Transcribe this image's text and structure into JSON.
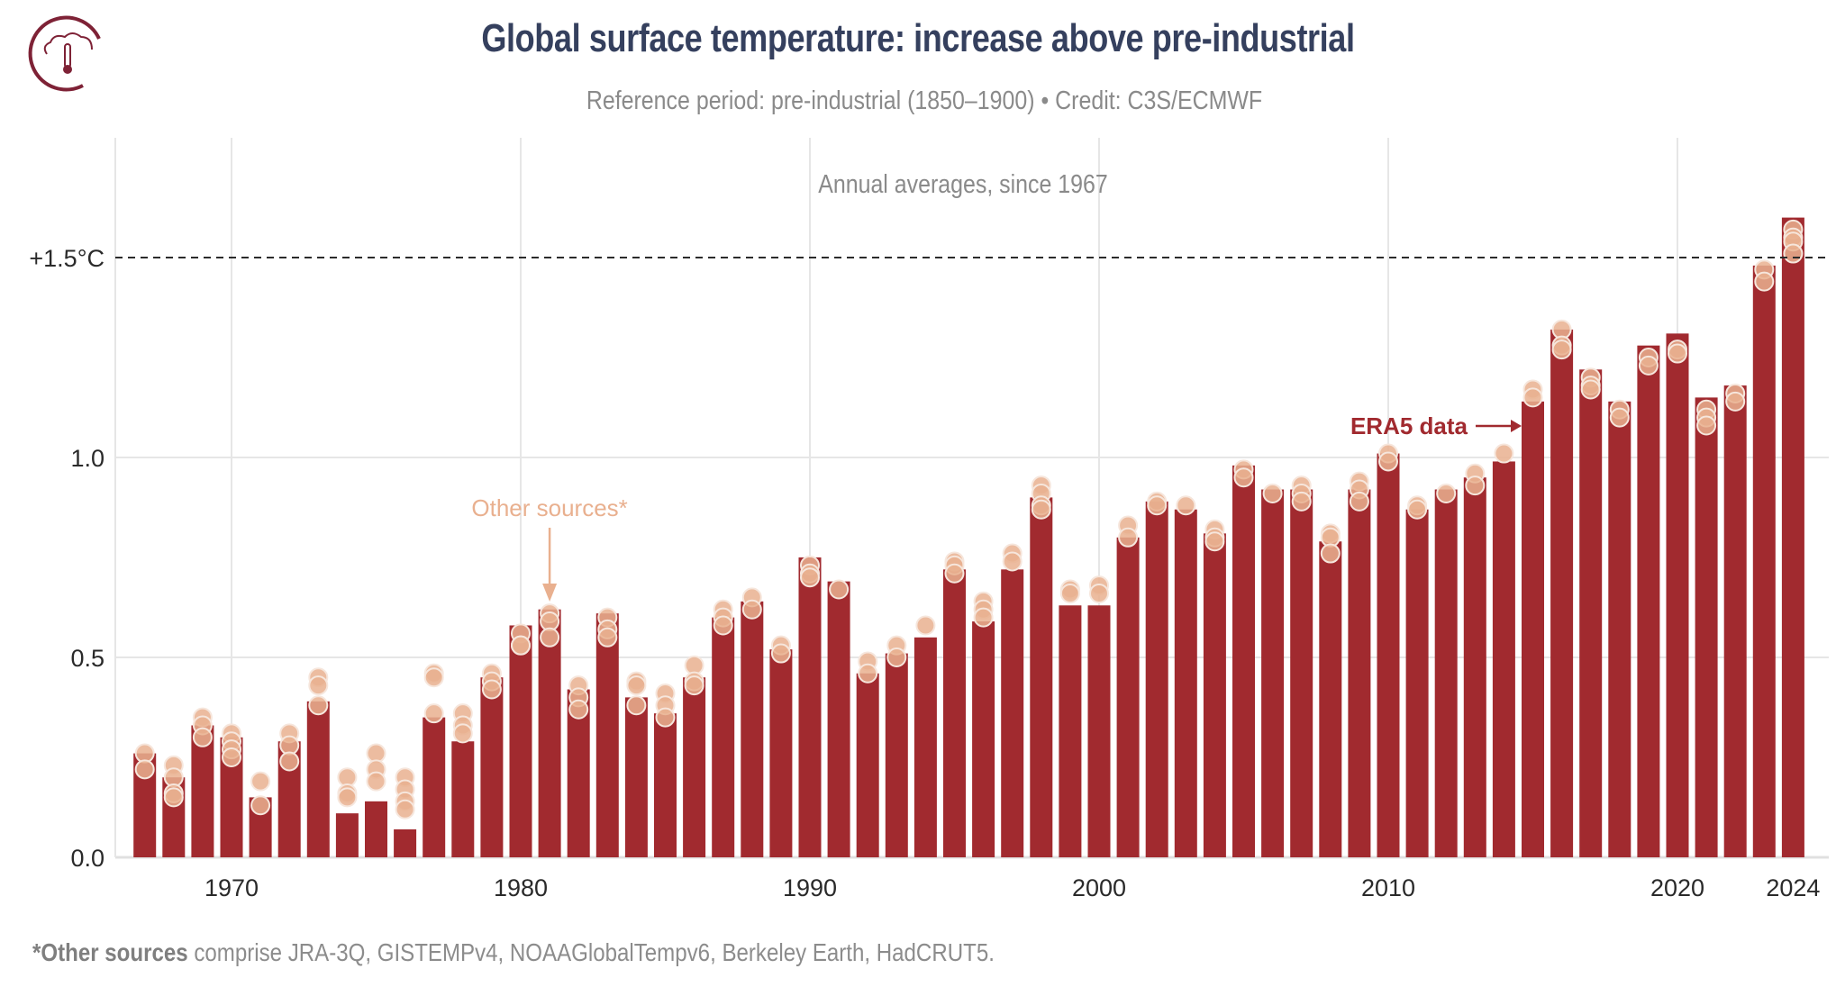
{
  "header": {
    "title": "Global surface temperature: increase above pre-industrial",
    "subtitle": "Reference period: pre-industrial (1850–1900) • Credit: C3S/ECMWF",
    "logo_icon": "cloud-thermometer-icon"
  },
  "footnote": {
    "bold": "*Other sources",
    "rest": " comprise JRA-3Q, GISTEMPv4, NOAAGlobalTempv6, Berkeley Earth, HadCRUT5."
  },
  "colors": {
    "bar": "#a12a2f",
    "dots": "#e9b08f",
    "title": "#35405e",
    "grid": "#e6e6e6"
  },
  "chart_data": {
    "type": "bar",
    "title": "Annual averages, since 1967",
    "xlabel": "",
    "ylabel": "",
    "ylim": [
      0,
      1.75
    ],
    "xlim": [
      1967,
      2024
    ],
    "grid": true,
    "y_ticks": [
      {
        "value": 0.0,
        "label": "0.0"
      },
      {
        "value": 0.5,
        "label": "0.5"
      },
      {
        "value": 1.0,
        "label": "1.0"
      },
      {
        "value": 1.5,
        "label": "+1.5°C"
      }
    ],
    "x_ticks": [
      {
        "value": 1970,
        "label": "1970"
      },
      {
        "value": 1980,
        "label": "1980"
      },
      {
        "value": 1990,
        "label": "1990"
      },
      {
        "value": 2000,
        "label": "2000"
      },
      {
        "value": 2010,
        "label": "2010"
      },
      {
        "value": 2020,
        "label": "2020"
      },
      {
        "value": 2024,
        "label": "2024"
      }
    ],
    "reference_line": {
      "value": 1.5,
      "style": "dashed"
    },
    "annotations": [
      {
        "text": "Other sources*",
        "target_year": 1981,
        "series": "Other sources"
      },
      {
        "text": "ERA5 data",
        "target_year": 2015,
        "series": "ERA5"
      }
    ],
    "categories": [
      1967,
      1968,
      1969,
      1970,
      1971,
      1972,
      1973,
      1974,
      1975,
      1976,
      1977,
      1978,
      1979,
      1980,
      1981,
      1982,
      1983,
      1984,
      1985,
      1986,
      1987,
      1988,
      1989,
      1990,
      1991,
      1992,
      1993,
      1994,
      1995,
      1996,
      1997,
      1998,
      1999,
      2000,
      2001,
      2002,
      2003,
      2004,
      2005,
      2006,
      2007,
      2008,
      2009,
      2010,
      2011,
      2012,
      2013,
      2014,
      2015,
      2016,
      2017,
      2018,
      2019,
      2020,
      2021,
      2022,
      2023,
      2024
    ],
    "series": [
      {
        "name": "ERA5",
        "kind": "bar",
        "values": [
          0.26,
          0.2,
          0.33,
          0.3,
          0.15,
          0.29,
          0.39,
          0.11,
          0.14,
          0.07,
          0.35,
          0.29,
          0.45,
          0.58,
          0.62,
          0.42,
          0.61,
          0.4,
          0.36,
          0.45,
          0.6,
          0.64,
          0.52,
          0.75,
          0.69,
          0.46,
          0.51,
          0.55,
          0.72,
          0.59,
          0.72,
          0.9,
          0.63,
          0.63,
          0.8,
          0.89,
          0.87,
          0.81,
          0.98,
          0.92,
          0.92,
          0.79,
          0.92,
          1.01,
          0.87,
          0.92,
          0.95,
          0.99,
          1.14,
          1.32,
          1.22,
          1.14,
          1.28,
          1.31,
          1.15,
          1.18,
          1.48,
          1.6
        ]
      },
      {
        "name": "Other sources",
        "kind": "dots",
        "values": [
          [
            0.26,
            0.22
          ],
          [
            0.23,
            0.2,
            0.16,
            0.15
          ],
          [
            0.35,
            0.33,
            0.3
          ],
          [
            0.31,
            0.29,
            0.27,
            0.25
          ],
          [
            0.19,
            0.13
          ],
          [
            0.31,
            0.28,
            0.24
          ],
          [
            0.45,
            0.43,
            0.38
          ],
          [
            0.2,
            0.16,
            0.15
          ],
          [
            0.26,
            0.22,
            0.19
          ],
          [
            0.2,
            0.17,
            0.14,
            0.12
          ],
          [
            0.46,
            0.45,
            0.36
          ],
          [
            0.36,
            0.33,
            0.31
          ],
          [
            0.46,
            0.44,
            0.42
          ],
          [
            0.56,
            0.53,
            0.53
          ],
          [
            0.61,
            0.59,
            0.55
          ],
          [
            0.43,
            0.4,
            0.37
          ],
          [
            0.6,
            0.57,
            0.55
          ],
          [
            0.44,
            0.43,
            0.38
          ],
          [
            0.41,
            0.38,
            0.35
          ],
          [
            0.48,
            0.44,
            0.43
          ],
          [
            0.62,
            0.6,
            0.58
          ],
          [
            0.65,
            0.62
          ],
          [
            0.53,
            0.51
          ],
          [
            0.73,
            0.71,
            0.7
          ],
          [
            0.67
          ],
          [
            0.49,
            0.46
          ],
          [
            0.53,
            0.5
          ],
          [
            0.58
          ],
          [
            0.74,
            0.73,
            0.71
          ],
          [
            0.64,
            0.62,
            0.6
          ],
          [
            0.76,
            0.74
          ],
          [
            0.93,
            0.91,
            0.88,
            0.87
          ],
          [
            0.67,
            0.66
          ],
          [
            0.68,
            0.66
          ],
          [
            0.83,
            0.8
          ],
          [
            0.89,
            0.88
          ],
          [
            0.88
          ],
          [
            0.82,
            0.8,
            0.79
          ],
          [
            0.97,
            0.95
          ],
          [
            0.91
          ],
          [
            0.93,
            0.91,
            0.89
          ],
          [
            0.81,
            0.8,
            0.76
          ],
          [
            0.94,
            0.92,
            0.89
          ],
          [
            1.01,
            0.99
          ],
          [
            0.88,
            0.87
          ],
          [
            0.91
          ],
          [
            0.96,
            0.93
          ],
          [
            1.01
          ],
          [
            1.17,
            1.15
          ],
          [
            1.32,
            1.28,
            1.27
          ],
          [
            1.2,
            1.18,
            1.17
          ],
          [
            1.12,
            1.1
          ],
          [
            1.25,
            1.23
          ],
          [
            1.27,
            1.26
          ],
          [
            1.12,
            1.1,
            1.08
          ],
          [
            1.16,
            1.14
          ],
          [
            1.47,
            1.44
          ],
          [
            1.57,
            1.55,
            1.54,
            1.51
          ]
        ]
      }
    ]
  }
}
